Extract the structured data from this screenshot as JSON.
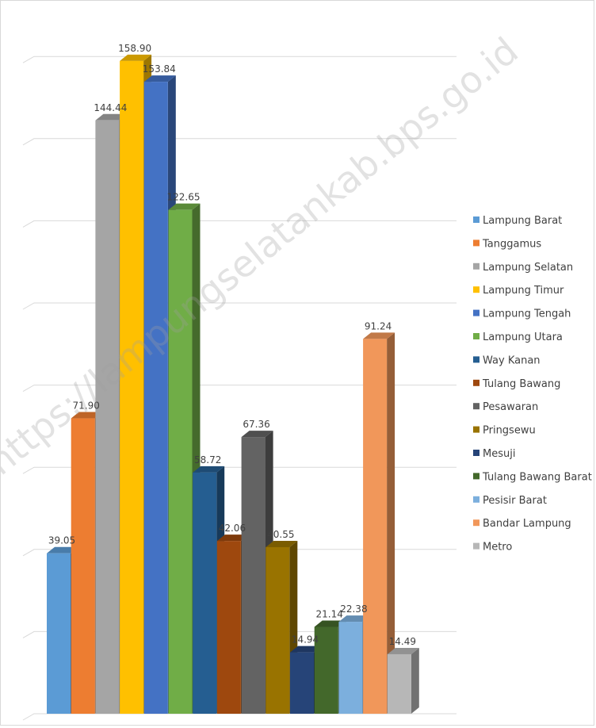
{
  "watermark": "https://lampungselatankab.bps.go.id",
  "chart_data": {
    "type": "bar",
    "title": "",
    "xlabel": "",
    "ylabel": "",
    "ylim": [
      0,
      170
    ],
    "grid": true,
    "legend_position": "right",
    "categories": [
      "Lampung Barat",
      "Tanggamus",
      "Lampung Selatan",
      "Lampung Timur",
      "Lampung Tengah",
      "Lampung Utara",
      "Way Kanan",
      "Tulang Bawang",
      "Pesawaran",
      "Pringsewu",
      "Mesuji",
      "Tulang Bawang Barat",
      "Pesisir Barat",
      "Bandar Lampung",
      "Metro"
    ],
    "values": [
      39.05,
      71.9,
      144.44,
      158.9,
      153.84,
      122.65,
      58.72,
      42.06,
      67.36,
      40.55,
      14.94,
      21.14,
      22.38,
      91.24,
      14.49
    ],
    "value_labels": [
      "39.05",
      "71.90",
      "144.44",
      "158.90",
      "153.84",
      "122.65",
      "58.72",
      "42.06",
      "67.36",
      "40.55",
      "14.94",
      "21.14",
      "22.38",
      "91.24",
      "14.49"
    ],
    "colors": [
      "#5b9bd5",
      "#ed7d31",
      "#a5a5a5",
      "#ffc000",
      "#4472c4",
      "#70ad47",
      "#255e91",
      "#9e480e",
      "#636363",
      "#997300",
      "#264478",
      "#43682b",
      "#7cafdd",
      "#f1975a",
      "#b7b7b7"
    ]
  }
}
